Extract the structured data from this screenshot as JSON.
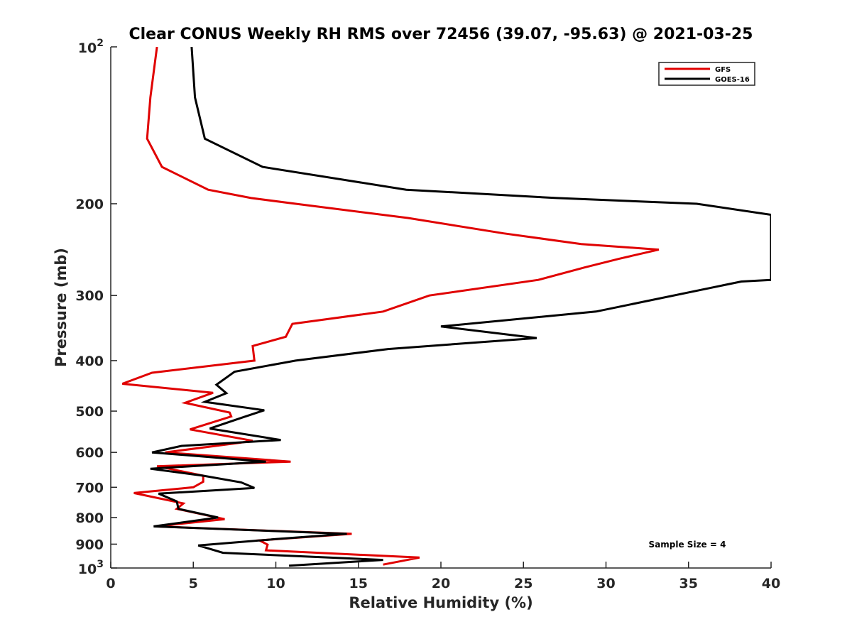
{
  "chart_data": {
    "type": "line",
    "title": "Clear CONUS Weekly RH RMS over 72456 (39.07, -95.63) @ 2021-03-25",
    "xlabel": "Relative Humidity (%)",
    "ylabel": "Pressure (mb)",
    "xlim": [
      0,
      40
    ],
    "ylim": [
      100,
      1000
    ],
    "yscale": "log",
    "yreversed": true,
    "grid": false,
    "legend_position": "top-right",
    "x_ticks": [
      0,
      5,
      10,
      15,
      20,
      25,
      30,
      35,
      40
    ],
    "x_tick_labels": [
      "0",
      "5",
      "10",
      "15",
      "20",
      "25",
      "30",
      "35",
      "40"
    ],
    "y_ticks": [
      200,
      300,
      400,
      500,
      600,
      700,
      800,
      900
    ],
    "y_tick_labels": [
      "200",
      "300",
      "400",
      "500",
      "600",
      "700",
      "800",
      "900"
    ],
    "y_power_ticks": [
      {
        "value": 100,
        "base": "10",
        "exp": "2"
      },
      {
        "value": 1000,
        "base": "10",
        "exp": "3"
      }
    ],
    "annotation": "Sample Size = 4",
    "series": [
      {
        "name": "GFS",
        "color": "#e00000",
        "points": [
          [
            2.8,
            100
          ],
          [
            2.4,
            125
          ],
          [
            2.2,
            150
          ],
          [
            3.1,
            170
          ],
          [
            5.9,
            188
          ],
          [
            8.5,
            195
          ],
          [
            11.2,
            200
          ],
          [
            18.0,
            213
          ],
          [
            23.8,
            228
          ],
          [
            28.5,
            239
          ],
          [
            33.2,
            245
          ],
          [
            30.8,
            255
          ],
          [
            28.7,
            265
          ],
          [
            25.9,
            280
          ],
          [
            19.3,
            300
          ],
          [
            16.5,
            322
          ],
          [
            11.0,
            340
          ],
          [
            10.6,
            360
          ],
          [
            8.6,
            375
          ],
          [
            8.7,
            400
          ],
          [
            2.5,
            422
          ],
          [
            0.7,
            443
          ],
          [
            6.2,
            461
          ],
          [
            4.5,
            482
          ],
          [
            7.2,
            503
          ],
          [
            7.3,
            512
          ],
          [
            4.8,
            542
          ],
          [
            8.6,
            570
          ],
          [
            7.8,
            575
          ],
          [
            3.3,
            600
          ],
          [
            10.9,
            625
          ],
          [
            2.8,
            638
          ],
          [
            5.6,
            665
          ],
          [
            5.6,
            683
          ],
          [
            5.0,
            700
          ],
          [
            1.4,
            718
          ],
          [
            4.4,
            752
          ],
          [
            4.0,
            770
          ],
          [
            6.9,
            806
          ],
          [
            2.7,
            832
          ],
          [
            14.6,
            860
          ],
          [
            9.0,
            885
          ],
          [
            9.5,
            902
          ],
          [
            9.4,
            925
          ],
          [
            18.7,
            955
          ],
          [
            16.5,
            985
          ]
        ]
      },
      {
        "name": "GOES-16",
        "color": "#000000",
        "points": [
          [
            4.9,
            100
          ],
          [
            5.1,
            125
          ],
          [
            5.7,
            150
          ],
          [
            9.2,
            170
          ],
          [
            17.9,
            188
          ],
          [
            27.0,
            195
          ],
          [
            35.5,
            200
          ],
          [
            40.0,
            210
          ],
          [
            40.0,
            280
          ],
          [
            38.2,
            282
          ],
          [
            29.4,
            322
          ],
          [
            20.0,
            344
          ],
          [
            25.8,
            362
          ],
          [
            16.8,
            380
          ],
          [
            11.2,
            400
          ],
          [
            7.5,
            420
          ],
          [
            6.4,
            445
          ],
          [
            7.0,
            462
          ],
          [
            5.7,
            480
          ],
          [
            9.3,
            498
          ],
          [
            8.0,
            514
          ],
          [
            6.0,
            540
          ],
          [
            10.3,
            568
          ],
          [
            4.3,
            583
          ],
          [
            2.5,
            600
          ],
          [
            9.4,
            625
          ],
          [
            2.4,
            645
          ],
          [
            5.6,
            665
          ],
          [
            7.9,
            685
          ],
          [
            8.7,
            702
          ],
          [
            2.9,
            720
          ],
          [
            4.0,
            745
          ],
          [
            4.1,
            770
          ],
          [
            6.5,
            800
          ],
          [
            2.6,
            832
          ],
          [
            14.3,
            860
          ],
          [
            10.0,
            880
          ],
          [
            5.3,
            905
          ],
          [
            6.8,
            935
          ],
          [
            16.5,
            965
          ],
          [
            10.8,
            990
          ]
        ]
      }
    ]
  }
}
